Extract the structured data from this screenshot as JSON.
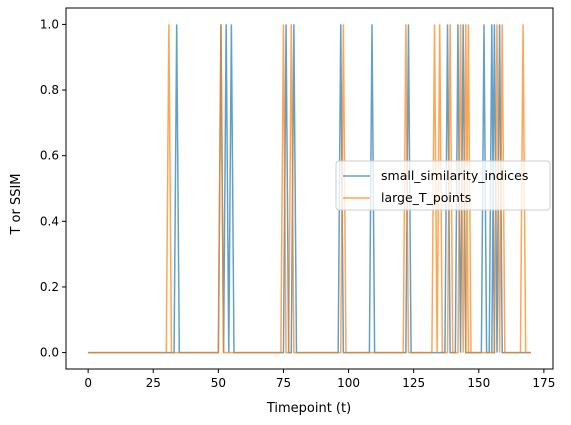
{
  "chart_data": {
    "type": "line",
    "title": "",
    "xlabel": "Timepoint (t)",
    "ylabel": "T or SSIM",
    "xlim": [
      -8.5,
      178.5
    ],
    "ylim": [
      -0.05,
      1.05
    ],
    "xticks": [
      0,
      25,
      50,
      75,
      100,
      125,
      150,
      175
    ],
    "xtick_labels": [
      "0",
      "25",
      "50",
      "75",
      "100",
      "125",
      "150",
      "175"
    ],
    "yticks": [
      0.0,
      0.2,
      0.4,
      0.6,
      0.8,
      1.0
    ],
    "ytick_labels": [
      "0.0",
      "0.2",
      "0.4",
      "0.6",
      "0.8",
      "1.0"
    ],
    "grid": false,
    "legend_position": "center-right",
    "x": [
      0,
      170
    ],
    "series": [
      {
        "name": "small_similarity_indices",
        "color": "#1f77b4",
        "opacity": 0.7,
        "spike_x": [
          34,
          51,
          53,
          55,
          76,
          79,
          97,
          109,
          123,
          138,
          142,
          144,
          152,
          155,
          156,
          158
        ]
      },
      {
        "name": "large_T_points",
        "color": "#ff7f0e",
        "opacity": 0.7,
        "spike_x": [
          31,
          51,
          75,
          78,
          98,
          122,
          133,
          135,
          139,
          143,
          145,
          146,
          157,
          159,
          167
        ]
      }
    ]
  }
}
